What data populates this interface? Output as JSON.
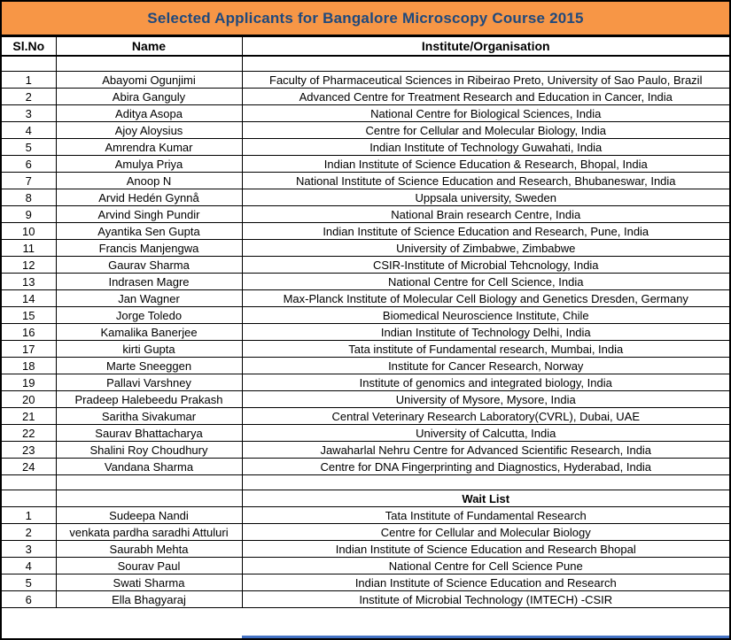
{
  "sheet": {
    "title": "Selected Applicants for Bangalore Microscopy Course 2015",
    "columns": {
      "slno": "Sl.No",
      "name": "Name",
      "institute": "Institute/Organisation"
    },
    "waitlist_label": "Wait List"
  },
  "selected_applicants": [
    {
      "slno": "1",
      "name": "Abayomi Ogunjimi",
      "institute": "Faculty of Pharmaceutical Sciences in Ribeirao Preto, University of Sao Paulo, Brazil"
    },
    {
      "slno": "2",
      "name": "Abira Ganguly",
      "institute": "Advanced Centre for Treatment Research and Education in Cancer, India"
    },
    {
      "slno": "3",
      "name": "Aditya Asopa",
      "institute": "National Centre for Biological Sciences, India"
    },
    {
      "slno": "4",
      "name": "Ajoy Aloysius",
      "institute": "Centre for Cellular and Molecular Biology, India"
    },
    {
      "slno": "5",
      "name": "Amrendra Kumar",
      "institute": "Indian Institute of Technology Guwahati, India"
    },
    {
      "slno": "6",
      "name": "Amulya Priya",
      "institute": "Indian Institute of Science Education & Research, Bhopal, India"
    },
    {
      "slno": "7",
      "name": "Anoop N",
      "institute": "National Institute of Science Education and Research, Bhubaneswar, India"
    },
    {
      "slno": "8",
      "name": "Arvid Hedén Gynnå",
      "institute": "Uppsala university, Sweden"
    },
    {
      "slno": "9",
      "name": "Arvind Singh Pundir",
      "institute": "National Brain research Centre, India"
    },
    {
      "slno": "10",
      "name": "Ayantika Sen Gupta",
      "institute": "Indian Institute of Science Education and Research, Pune, India"
    },
    {
      "slno": "11",
      "name": "Francis Manjengwa",
      "institute": "University of Zimbabwe, Zimbabwe"
    },
    {
      "slno": "12",
      "name": "Gaurav Sharma",
      "institute": "CSIR-Institute of Microbial Tehcnology, India"
    },
    {
      "slno": "13",
      "name": "Indrasen Magre",
      "institute": "National Centre for Cell Science, India"
    },
    {
      "slno": "14",
      "name": "Jan Wagner",
      "institute": "Max-Planck Institute of Molecular Cell Biology and Genetics Dresden, Germany"
    },
    {
      "slno": "15",
      "name": "Jorge Toledo",
      "institute": "Biomedical Neuroscience Institute, Chile"
    },
    {
      "slno": "16",
      "name": "Kamalika Banerjee",
      "institute": "Indian Institute of Technology Delhi, India"
    },
    {
      "slno": "17",
      "name": "kirti Gupta",
      "institute": "Tata institute of Fundamental research, Mumbai, India"
    },
    {
      "slno": "18",
      "name": "Marte Sneeggen",
      "institute": "Institute for Cancer Research, Norway"
    },
    {
      "slno": "19",
      "name": "Pallavi Varshney",
      "institute": "Institute of genomics and integrated biology, India"
    },
    {
      "slno": "20",
      "name": "Pradeep Halebeedu Prakash",
      "institute": "University of Mysore, Mysore, India"
    },
    {
      "slno": "21",
      "name": "Saritha Sivakumar",
      "institute": "Central Veterinary Research Laboratory(CVRL), Dubai, UAE"
    },
    {
      "slno": "22",
      "name": "Saurav Bhattacharya",
      "institute": "University of Calcutta, India"
    },
    {
      "slno": "23",
      "name": "Shalini Roy Choudhury",
      "institute": "Jawaharlal Nehru Centre for Advanced Scientific Research, India"
    },
    {
      "slno": "24",
      "name": "Vandana Sharma",
      "institute": "Centre for DNA Fingerprinting and Diagnostics, Hyderabad, India"
    }
  ],
  "wait_list": [
    {
      "slno": "1",
      "name": "Sudeepa Nandi",
      "institute": "Tata Institute of Fundamental Research"
    },
    {
      "slno": "2",
      "name": "venkata pardha saradhi Attuluri",
      "institute": "Centre for Cellular and Molecular Biology"
    },
    {
      "slno": "3",
      "name": "Saurabh Mehta",
      "institute": "Indian Institute of Science Education and Research Bhopal"
    },
    {
      "slno": "4",
      "name": "Sourav Paul",
      "institute": "National Centre for Cell Science Pune"
    },
    {
      "slno": "5",
      "name": "Swati Sharma",
      "institute": "Indian Institute of Science Education and Research"
    },
    {
      "slno": "6",
      "name": "Ella Bhagyaraj",
      "institute": "Institute of Microbial Technology (IMTECH) -CSIR"
    }
  ],
  "colors": {
    "title_bg": "#F79646",
    "title_text": "#1F497D",
    "border": "#000000",
    "bottom_strip": "#4472C4"
  }
}
